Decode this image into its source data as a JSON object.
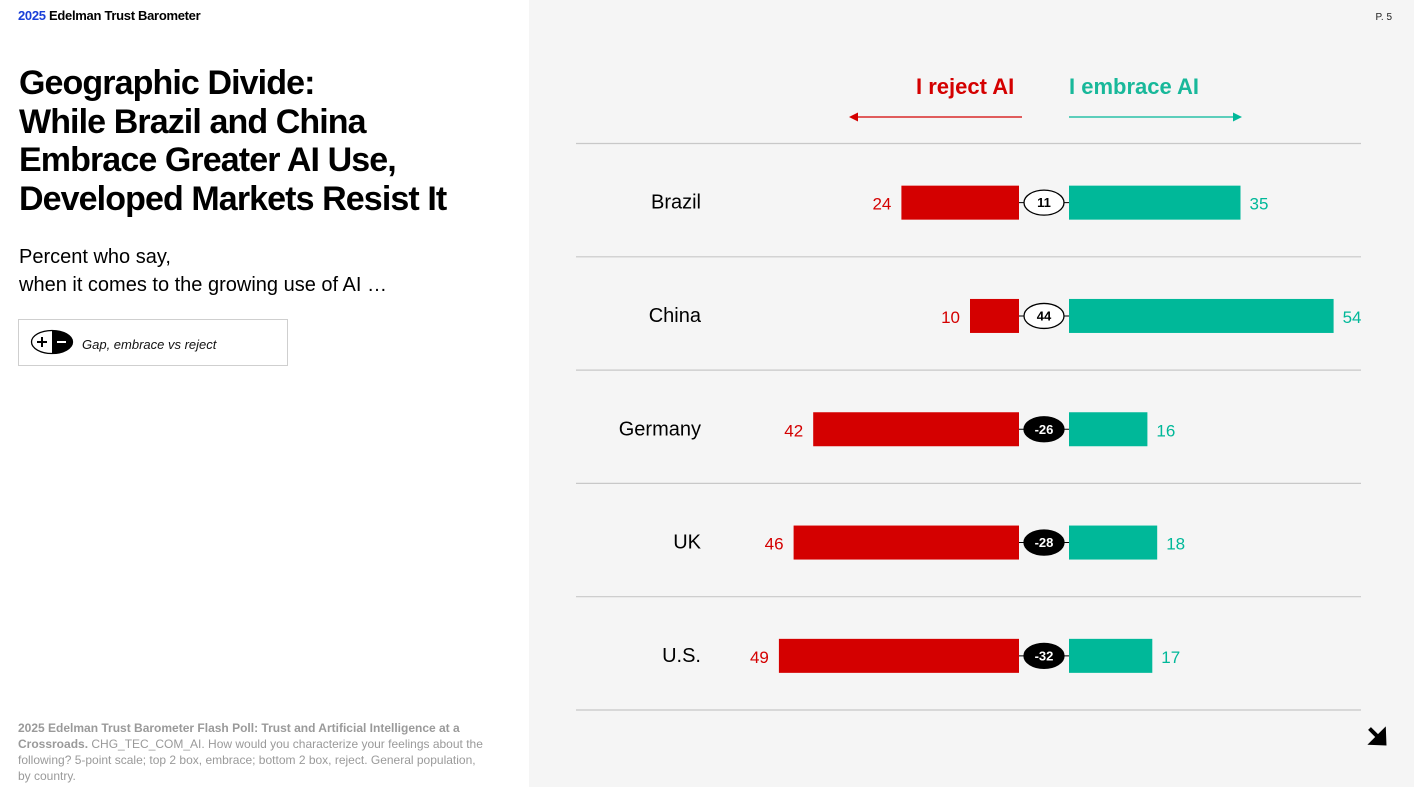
{
  "brand": {
    "year": "2025",
    "name": "Edelman Trust Barometer"
  },
  "page_number": "P. 5",
  "title_lines": [
    "Geographic Divide:",
    "While Brazil and China",
    "Embrace Greater AI Use,",
    "Developed Markets Resist It"
  ],
  "subtitle_lines": [
    "Percent who say,",
    "when it comes to the growing use of AI …"
  ],
  "legend": {
    "label": "Gap, embrace vs reject",
    "icon": "plus-minus-icon"
  },
  "source": {
    "bold": "2025 Edelman Trust Barometer Flash Poll: Trust and Artificial Intelligence at a Crossroads.",
    "rest": " CHG_TEC_COM_AI. How would you characterize your feelings about the following? 5-point scale; top 2 box, embrace; bottom 2 box, reject. General population, by country."
  },
  "colors": {
    "reject": "#d40000",
    "embrace": "#00b899",
    "brand_blue": "#1a3fd8"
  },
  "chart_data": {
    "type": "bar",
    "orientation": "horizontal-diverging",
    "series_labels": {
      "reject": "I reject AI",
      "embrace": "I embrace AI"
    },
    "categories": [
      "Brazil",
      "China",
      "Germany",
      "UK",
      "U.S."
    ],
    "series": [
      {
        "name": "I reject AI",
        "values": [
          24,
          10,
          42,
          46,
          49
        ]
      },
      {
        "name": "I embrace AI",
        "values": [
          35,
          54,
          16,
          18,
          17
        ]
      }
    ],
    "gap": {
      "name": "Gap, embrace vs reject",
      "values": [
        11,
        44,
        -26,
        -28,
        -32
      ]
    },
    "units": "percent"
  }
}
